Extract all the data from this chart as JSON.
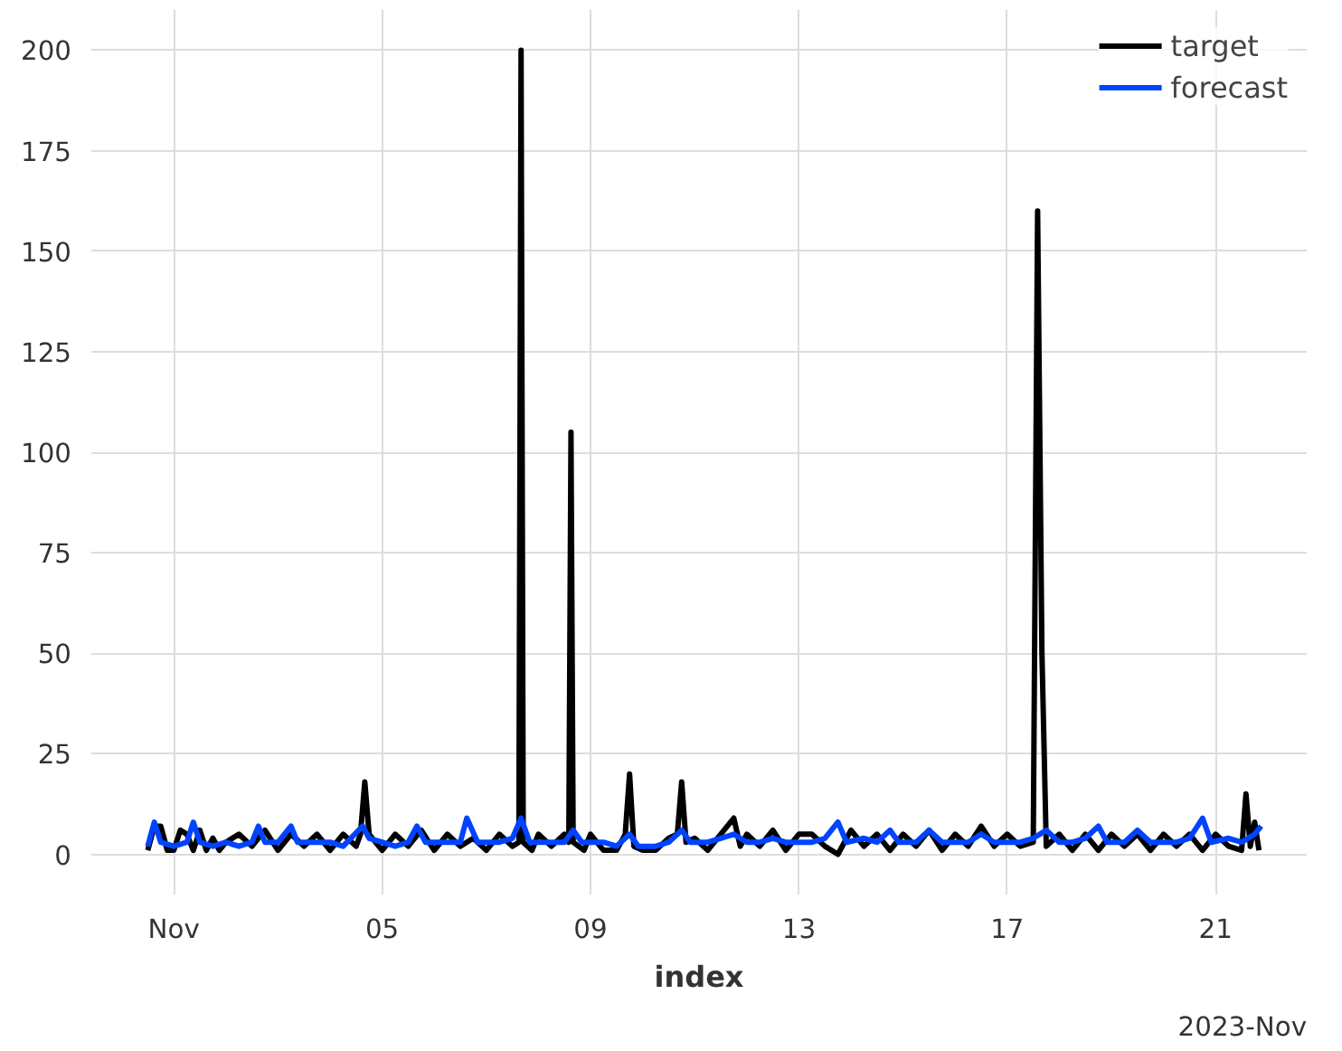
{
  "chart_data": {
    "type": "line",
    "xlabel": "index",
    "annotations": [
      "2023-Nov"
    ],
    "xlim": [
      "2023-10-30T10:00",
      "2023-11-22T18:00"
    ],
    "ylim": [
      -10,
      210
    ],
    "xticks": [
      {
        "value": "2023-11-01",
        "label": "Nov"
      },
      {
        "value": "2023-11-05",
        "label": "05"
      },
      {
        "value": "2023-11-09",
        "label": "09"
      },
      {
        "value": "2023-11-13",
        "label": "13"
      },
      {
        "value": "2023-11-17",
        "label": "17"
      },
      {
        "value": "2023-11-21",
        "label": "21"
      }
    ],
    "yticks": [
      0,
      25,
      50,
      75,
      100,
      125,
      150,
      175,
      200
    ],
    "grid": true,
    "legend": "top right",
    "line_style": "solid",
    "marker": "none",
    "series": [
      {
        "name": "target",
        "color": "#000000",
        "x": [
          "2023-10-31T12:00",
          "2023-10-31T15:00",
          "2023-10-31T18:00",
          "2023-10-31T21:00",
          "2023-11-01T00:00",
          "2023-11-01T03:00",
          "2023-11-01T06:00",
          "2023-11-01T09:00",
          "2023-11-01T12:00",
          "2023-11-01T15:00",
          "2023-11-01T18:00",
          "2023-11-01T21:00",
          "2023-11-02T00:00",
          "2023-11-02T06:00",
          "2023-11-02T12:00",
          "2023-11-02T18:00",
          "2023-11-03T00:00",
          "2023-11-03T06:00",
          "2023-11-03T12:00",
          "2023-11-03T18:00",
          "2023-11-04T00:00",
          "2023-11-04T06:00",
          "2023-11-04T12:00",
          "2023-11-04T14:00",
          "2023-11-04T16:00",
          "2023-11-04T18:00",
          "2023-11-05T00:00",
          "2023-11-05T06:00",
          "2023-11-05T12:00",
          "2023-11-05T18:00",
          "2023-11-06T00:00",
          "2023-11-06T06:00",
          "2023-11-06T12:00",
          "2023-11-06T18:00",
          "2023-11-07T00:00",
          "2023-11-07T06:00",
          "2023-11-07T12:00",
          "2023-11-07T15:00",
          "2023-11-07T16:00",
          "2023-11-07T17:00",
          "2023-11-07T21:00",
          "2023-11-08T00:00",
          "2023-11-08T06:00",
          "2023-11-08T12:00",
          "2023-11-08T14:00",
          "2023-11-08T15:00",
          "2023-11-08T16:00",
          "2023-11-08T21:00",
          "2023-11-09T00:00",
          "2023-11-09T06:00",
          "2023-11-09T12:00",
          "2023-11-09T16:00",
          "2023-11-09T18:00",
          "2023-11-09T20:00",
          "2023-11-10T00:00",
          "2023-11-10T06:00",
          "2023-11-10T12:00",
          "2023-11-10T16:00",
          "2023-11-10T18:00",
          "2023-11-10T20:00",
          "2023-11-11T00:00",
          "2023-11-11T06:00",
          "2023-11-11T12:00",
          "2023-11-11T18:00",
          "2023-11-11T21:00",
          "2023-11-12T00:00",
          "2023-11-12T06:00",
          "2023-11-12T12:00",
          "2023-11-12T18:00",
          "2023-11-13T00:00",
          "2023-11-13T06:00",
          "2023-11-13T12:00",
          "2023-11-13T18:00",
          "2023-11-14T00:00",
          "2023-11-14T06:00",
          "2023-11-14T12:00",
          "2023-11-14T18:00",
          "2023-11-15T00:00",
          "2023-11-15T06:00",
          "2023-11-15T12:00",
          "2023-11-15T18:00",
          "2023-11-16T00:00",
          "2023-11-16T06:00",
          "2023-11-16T12:00",
          "2023-11-16T18:00",
          "2023-11-17T00:00",
          "2023-11-17T06:00",
          "2023-11-17T12:00",
          "2023-11-17T14:00",
          "2023-11-17T16:00",
          "2023-11-17T18:00",
          "2023-11-18T00:00",
          "2023-11-18T06:00",
          "2023-11-18T12:00",
          "2023-11-18T18:00",
          "2023-11-19T00:00",
          "2023-11-19T06:00",
          "2023-11-19T12:00",
          "2023-11-19T18:00",
          "2023-11-20T00:00",
          "2023-11-20T06:00",
          "2023-11-20T12:00",
          "2023-11-20T18:00",
          "2023-11-21T00:00",
          "2023-11-21T06:00",
          "2023-11-21T12:00",
          "2023-11-21T14:00",
          "2023-11-21T16:00",
          "2023-11-21T18:00",
          "2023-11-21T20:00"
        ],
        "values": [
          1,
          7,
          7,
          1,
          1,
          6,
          5,
          1,
          6,
          1,
          4,
          1,
          3,
          5,
          2,
          6,
          1,
          5,
          2,
          5,
          1,
          5,
          2,
          5,
          18,
          5,
          1,
          5,
          2,
          6,
          1,
          5,
          2,
          4,
          1,
          5,
          2,
          3,
          200,
          3,
          1,
          5,
          2,
          5,
          3,
          105,
          3,
          1,
          5,
          1,
          1,
          5,
          20,
          2,
          1,
          1,
          4,
          5,
          18,
          3,
          4,
          1,
          5,
          9,
          2,
          5,
          2,
          6,
          1,
          5,
          5,
          2,
          0,
          6,
          2,
          5,
          1,
          5,
          2,
          6,
          1,
          5,
          2,
          7,
          2,
          5,
          2,
          3,
          160,
          50,
          2,
          5,
          1,
          5,
          1,
          5,
          2,
          5,
          1,
          5,
          2,
          5,
          1,
          5,
          2,
          1,
          15,
          2,
          8,
          1
        ]
      },
      {
        "name": "forecast",
        "color": "#0044ff",
        "x": [
          "2023-10-31T12:00",
          "2023-10-31T15:00",
          "2023-10-31T18:00",
          "2023-11-01T00:00",
          "2023-11-01T06:00",
          "2023-11-01T09:00",
          "2023-11-01T12:00",
          "2023-11-01T18:00",
          "2023-11-02T00:00",
          "2023-11-02T06:00",
          "2023-11-02T12:00",
          "2023-11-02T15:00",
          "2023-11-02T18:00",
          "2023-11-03T00:00",
          "2023-11-03T06:00",
          "2023-11-03T09:00",
          "2023-11-03T18:00",
          "2023-11-04T00:00",
          "2023-11-04T06:00",
          "2023-11-04T15:00",
          "2023-11-04T18:00",
          "2023-11-05T00:00",
          "2023-11-05T06:00",
          "2023-11-05T12:00",
          "2023-11-05T16:00",
          "2023-11-05T20:00",
          "2023-11-06T06:00",
          "2023-11-06T12:00",
          "2023-11-06T15:00",
          "2023-11-06T20:00",
          "2023-11-07T06:00",
          "2023-11-07T12:00",
          "2023-11-07T16:00",
          "2023-11-07T20:00",
          "2023-11-08T06:00",
          "2023-11-08T12:00",
          "2023-11-08T16:00",
          "2023-11-08T20:00",
          "2023-11-09T06:00",
          "2023-11-09T12:00",
          "2023-11-09T18:00",
          "2023-11-09T22:00",
          "2023-11-10T06:00",
          "2023-11-10T12:00",
          "2023-11-10T18:00",
          "2023-11-10T22:00",
          "2023-11-11T06:00",
          "2023-11-11T12:00",
          "2023-11-11T18:00",
          "2023-11-12T00:00",
          "2023-11-12T06:00",
          "2023-11-12T12:00",
          "2023-11-12T18:00",
          "2023-11-13T06:00",
          "2023-11-13T12:00",
          "2023-11-13T18:00",
          "2023-11-13T22:00",
          "2023-11-14T06:00",
          "2023-11-14T12:00",
          "2023-11-14T18:00",
          "2023-11-14T22:00",
          "2023-11-15T06:00",
          "2023-11-15T12:00",
          "2023-11-15T18:00",
          "2023-11-16T06:00",
          "2023-11-16T12:00",
          "2023-11-16T18:00",
          "2023-11-17T06:00",
          "2023-11-17T12:00",
          "2023-11-17T18:00",
          "2023-11-18T00:00",
          "2023-11-18T06:00",
          "2023-11-18T12:00",
          "2023-11-18T18:00",
          "2023-11-18T22:00",
          "2023-11-19T06:00",
          "2023-11-19T12:00",
          "2023-11-19T18:00",
          "2023-11-20T06:00",
          "2023-11-20T12:00",
          "2023-11-20T18:00",
          "2023-11-20T22:00",
          "2023-11-21T06:00",
          "2023-11-21T12:00",
          "2023-11-21T18:00",
          "2023-11-21T21:00"
        ],
        "values": [
          2,
          8,
          3,
          2,
          3,
          8,
          3,
          2,
          3,
          2,
          3,
          7,
          3,
          3,
          7,
          3,
          3,
          3,
          2,
          7,
          4,
          3,
          2,
          3,
          7,
          3,
          3,
          3,
          9,
          3,
          3,
          4,
          9,
          3,
          3,
          3,
          6,
          3,
          3,
          2,
          5,
          2,
          2,
          3,
          6,
          3,
          3,
          4,
          5,
          3,
          3,
          4,
          3,
          3,
          4,
          8,
          3,
          4,
          3,
          6,
          3,
          3,
          6,
          3,
          3,
          5,
          3,
          3,
          4,
          6,
          3,
          3,
          4,
          7,
          3,
          3,
          6,
          3,
          3,
          4,
          9,
          3,
          4,
          3,
          5,
          7
        ]
      }
    ]
  }
}
